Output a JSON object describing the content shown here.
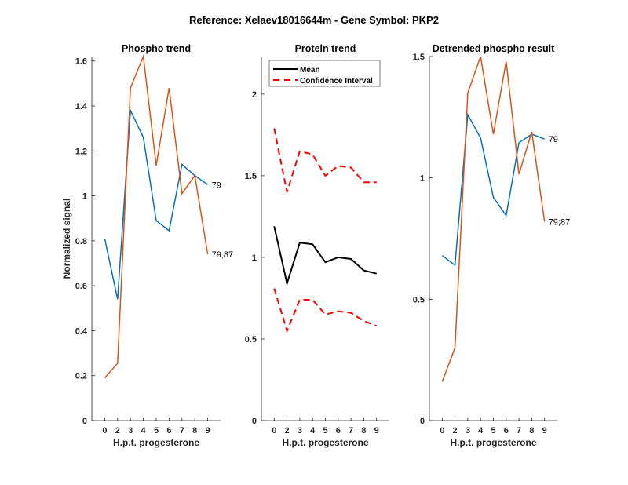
{
  "figure_title": "Reference:  Xelaev18016644m - Gene Symbol:  PKP2",
  "colors": {
    "series1": "#0072BD",
    "series2": "#D95319",
    "mean": "#000000",
    "ci": "#FF0000",
    "axis": "#262626"
  },
  "chart_data": [
    {
      "type": "line",
      "title": "Phospho trend",
      "xlabel": "H.p.t. progesterone",
      "ylabel": "Normalized signal",
      "categories": [
        "0",
        "2",
        "3",
        "4",
        "5",
        "6",
        "7",
        "8",
        "9"
      ],
      "ylim": [
        0,
        1.62
      ],
      "yticks": [
        "0",
        "0.2",
        "0.4",
        "0.6",
        "0.8",
        "1",
        "1.2",
        "1.4",
        "1.6"
      ],
      "ytick_values": [
        0,
        0.2,
        0.4,
        0.6,
        0.8,
        1,
        1.2,
        1.4,
        1.6
      ],
      "series": [
        {
          "name": "79",
          "label": "79",
          "color": "#0072BD",
          "values": [
            0.81,
            0.54,
            1.38,
            1.26,
            0.89,
            0.845,
            1.14,
            1.09,
            1.05
          ]
        },
        {
          "name": "79;87",
          "label": "79;87",
          "color": "#D95319",
          "values": [
            0.19,
            0.255,
            1.48,
            1.62,
            1.135,
            1.48,
            1.01,
            1.09,
            0.74
          ]
        }
      ]
    },
    {
      "type": "line",
      "title": "Protein trend",
      "xlabel": "H.p.t. progesterone",
      "ylabel": "",
      "categories": [
        "0",
        "2",
        "3",
        "4",
        "5",
        "6",
        "7",
        "8",
        "9"
      ],
      "ylim": [
        0,
        2.23
      ],
      "yticks": [
        "0",
        "0.5",
        "1",
        "1.5",
        "2"
      ],
      "ytick_values": [
        0,
        0.5,
        1,
        1.5,
        2
      ],
      "legend": {
        "position": "top",
        "entries": [
          "Mean",
          "Confidence Interval"
        ]
      },
      "series": [
        {
          "name": "Mean",
          "color": "#000000",
          "style": "solid",
          "values": [
            1.19,
            0.84,
            1.09,
            1.08,
            0.97,
            1.0,
            0.99,
            0.92,
            0.9
          ]
        },
        {
          "name": "Confidence Interval (upper)",
          "color": "#FF0000",
          "style": "dashed",
          "values": [
            1.79,
            1.4,
            1.65,
            1.63,
            1.5,
            1.56,
            1.55,
            1.46,
            1.46
          ]
        },
        {
          "name": "Confidence Interval (lower)",
          "color": "#FF0000",
          "style": "dashed",
          "values": [
            0.81,
            0.55,
            0.74,
            0.74,
            0.65,
            0.67,
            0.66,
            0.61,
            0.58
          ]
        }
      ]
    },
    {
      "type": "line",
      "title": "Detrended phospho result",
      "xlabel": "H.p.t. progesterone",
      "ylabel": "",
      "categories": [
        "0",
        "2",
        "3",
        "4",
        "5",
        "6",
        "7",
        "8",
        "9"
      ],
      "ylim": [
        0,
        1.5
      ],
      "yticks": [
        "0",
        "0.5",
        "1",
        "1.5"
      ],
      "ytick_values": [
        0,
        0.5,
        1,
        1.5
      ],
      "series": [
        {
          "name": "79",
          "label": "79",
          "color": "#0072BD",
          "values": [
            0.68,
            0.64,
            1.26,
            1.165,
            0.92,
            0.845,
            1.145,
            1.18,
            1.16
          ]
        },
        {
          "name": "79;87",
          "label": "79;87",
          "color": "#D95319",
          "values": [
            0.16,
            0.3,
            1.35,
            1.5,
            1.18,
            1.48,
            1.015,
            1.19,
            0.82
          ]
        }
      ]
    }
  ]
}
